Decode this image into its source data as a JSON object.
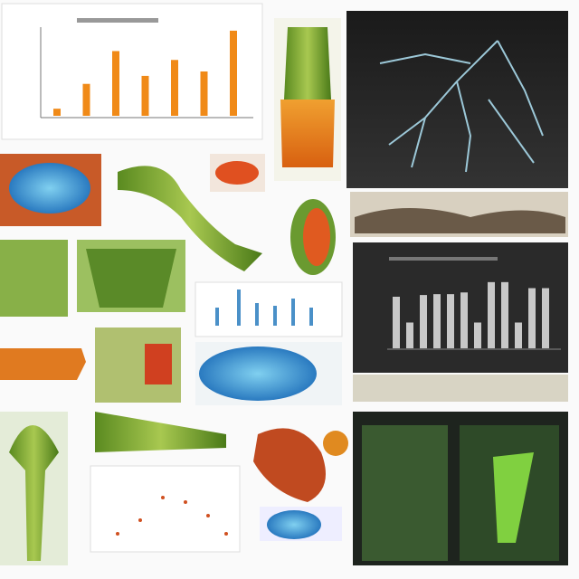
{
  "panels": {
    "orange_chart": {
      "bars": [
        8,
        36,
        73,
        45,
        63,
        50,
        96
      ]
    },
    "gray_chart": {
      "bars": [
        60,
        30,
        62,
        63,
        63,
        65,
        30,
        77,
        77,
        30,
        70,
        70
      ]
    }
  }
}
